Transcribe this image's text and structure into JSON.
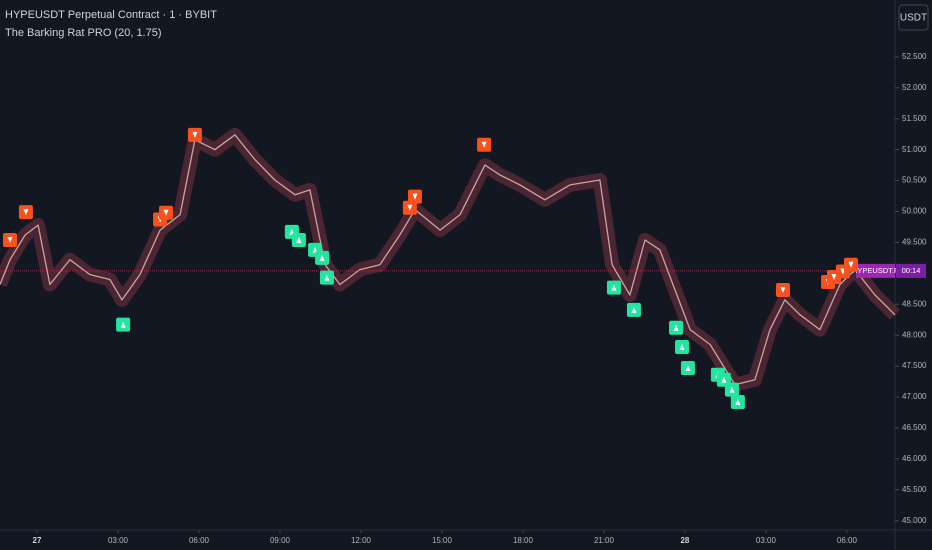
{
  "chart_data": {
    "type": "line",
    "title": "HYPEUSDT Perpetual Contract · 1 · BYBIT",
    "subtitle": "The Barking Rat PRO (20, 1.75)",
    "currency": "USDT",
    "symbol_label": "HYPEUSDT.P",
    "countdown": "00:14",
    "last_price": 49.04,
    "color": "#c8a7a2",
    "band_color": "#7a3140",
    "x": [
      -1.37,
      -1.0,
      -0.44,
      0.04,
      0.48,
      1.22,
      1.96,
      2.7,
      3.15,
      3.81,
      4.56,
      5.3,
      5.85,
      6.59,
      7.33,
      8.07,
      8.81,
      9.56,
      10.11,
      10.67,
      11.22,
      11.96,
      12.7,
      13.44,
      14.0,
      14.93,
      15.67,
      16.59,
      17.15,
      17.89,
      18.81,
      19.74,
      20.85,
      21.3,
      21.96,
      22.52,
      23.07,
      23.63,
      24.19,
      24.93,
      25.85,
      26.59,
      27.15,
      27.7,
      28.26,
      29.0,
      29.74,
      30.3,
      31.04,
      31.78
    ],
    "values": [
      48.82,
      49.22,
      49.62,
      49.78,
      48.82,
      49.22,
      48.98,
      48.9,
      48.57,
      48.98,
      49.7,
      49.95,
      51.16,
      51.0,
      51.24,
      50.84,
      50.51,
      50.27,
      50.35,
      49.14,
      48.82,
      49.06,
      49.14,
      49.62,
      50.03,
      49.7,
      49.95,
      50.75,
      50.59,
      50.43,
      50.19,
      50.43,
      50.51,
      49.14,
      48.65,
      49.54,
      49.38,
      48.73,
      48.09,
      47.85,
      47.2,
      47.28,
      48.09,
      48.57,
      48.33,
      48.09,
      48.82,
      49.06,
      48.65,
      48.33
    ],
    "sell_signals": {
      "color": "#f7521e",
      "x": [
        -1.0,
        -0.41,
        4.56,
        4.78,
        5.85,
        16.56,
        13.81,
        14.0,
        27.63,
        29.3,
        29.52,
        29.85,
        30.15
      ],
      "y": [
        49.54,
        49.99,
        49.87,
        49.98,
        51.24,
        51.08,
        50.06,
        50.24,
        48.73,
        48.86,
        48.94,
        49.03,
        49.14
      ]
    },
    "buy_signals": {
      "color": "#22e6a0",
      "x": [
        3.19,
        9.44,
        9.7,
        10.3,
        10.56,
        10.74,
        21.37,
        22.11,
        23.67,
        23.89,
        24.11,
        25.22,
        25.44,
        25.74,
        25.96
      ],
      "y": [
        48.17,
        49.67,
        49.54,
        49.38,
        49.25,
        48.93,
        48.77,
        48.41,
        48.12,
        47.81,
        47.47,
        47.36,
        47.28,
        47.12,
        46.92
      ]
    },
    "xlim": [
      -1.37,
      31.78
    ],
    "ylim": [
      44.85,
      53.42
    ],
    "xticks": [
      {
        "value": 0,
        "label": "27"
      },
      {
        "value": 3,
        "label": "03:00"
      },
      {
        "value": 6,
        "label": "06:00"
      },
      {
        "value": 9,
        "label": "09:00"
      },
      {
        "value": 12,
        "label": "12:00"
      },
      {
        "value": 15,
        "label": "15:00"
      },
      {
        "value": 18,
        "label": "18:00"
      },
      {
        "value": 21,
        "label": "21:00"
      },
      {
        "value": 24,
        "label": "28"
      },
      {
        "value": 27,
        "label": "03:00"
      },
      {
        "value": 30,
        "label": "06:00"
      }
    ],
    "yticks": [
      {
        "value": 45,
        "label": "45.000"
      },
      {
        "value": 45.5,
        "label": "45.500"
      },
      {
        "value": 46,
        "label": "46.000"
      },
      {
        "value": 46.5,
        "label": "46.500"
      },
      {
        "value": 47,
        "label": "47.000"
      },
      {
        "value": 47.5,
        "label": "47.500"
      },
      {
        "value": 48,
        "label": "48.000"
      },
      {
        "value": 48.5,
        "label": "48.500"
      },
      {
        "value": 49,
        "label": "49.000"
      },
      {
        "value": 49.5,
        "label": "49.500"
      },
      {
        "value": 50,
        "label": "50.000"
      },
      {
        "value": 50.5,
        "label": "50.500"
      },
      {
        "value": 51,
        "label": "51.000"
      },
      {
        "value": 51.5,
        "label": "51.500"
      },
      {
        "value": 52,
        "label": "52.000"
      },
      {
        "value": 52.5,
        "label": "52.500"
      }
    ]
  }
}
